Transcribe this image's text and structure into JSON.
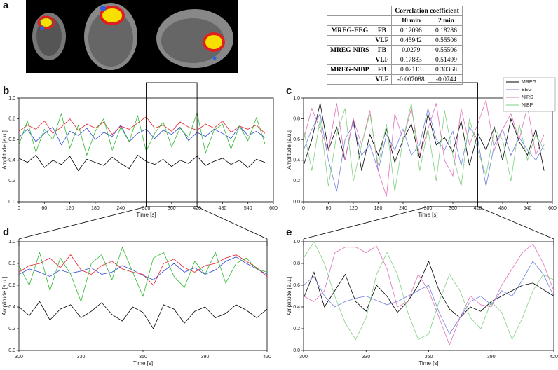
{
  "panel_a": "a",
  "table": {
    "header": "Correlation coefficient",
    "subheaders": [
      "10 min",
      "2 min"
    ],
    "groups": [
      {
        "group": "MREG-EEG",
        "rows": [
          [
            "FB",
            0.12096,
            0.18286
          ],
          [
            "VLF",
            0.45942,
            0.55506
          ]
        ]
      },
      {
        "group": "MREG-NIRS",
        "rows": [
          [
            "FB",
            0.0279,
            0.55506
          ],
          [
            "VLF",
            0.17883,
            0.51499
          ]
        ]
      },
      {
        "group": "MREG-NIBP",
        "rows": [
          [
            "FB",
            0.02113,
            0.30368
          ],
          [
            "VLF",
            -0.007088,
            -0.0744
          ]
        ]
      }
    ]
  },
  "chart_data": [
    {
      "type": "line",
      "panel": "b",
      "x_label": "Time [s]",
      "y_label": "Amplitude [a.u.]",
      "x": [
        0,
        20,
        40,
        60,
        80,
        100,
        120,
        140,
        160,
        180,
        200,
        220,
        240,
        260,
        280,
        300,
        320,
        340,
        360,
        380,
        400,
        420,
        440,
        460,
        480,
        500,
        520,
        540,
        560,
        580
      ],
      "xlim": [
        0,
        600
      ],
      "xticks": [
        0,
        60,
        120,
        180,
        240,
        300,
        360,
        420,
        480,
        540,
        600
      ],
      "ylim": [
        0,
        1
      ],
      "yticks": [
        {
          "value": 0,
          "label": "0.0"
        },
        {
          "value": 0.2,
          "label": "0.2"
        },
        {
          "value": 0.4,
          "label": "0.4"
        },
        {
          "value": 0.6,
          "label": "0.6"
        },
        {
          "value": 0.8,
          "label": "0.8"
        },
        {
          "value": 1,
          "label": "1.0"
        }
      ],
      "series": [
        {
          "color": "#000000",
          "values": [
            0.42,
            0.38,
            0.45,
            0.33,
            0.4,
            0.36,
            0.44,
            0.3,
            0.41,
            0.38,
            0.35,
            0.43,
            0.37,
            0.32,
            0.45,
            0.39,
            0.36,
            0.41,
            0.34,
            0.4,
            0.37,
            0.44,
            0.35,
            0.39,
            0.42,
            0.36,
            0.4,
            0.33,
            0.41,
            0.38
          ]
        },
        {
          "color": "#2f45d8",
          "values": [
            0.62,
            0.7,
            0.58,
            0.66,
            0.72,
            0.55,
            0.68,
            0.64,
            0.71,
            0.6,
            0.67,
            0.63,
            0.74,
            0.58,
            0.66,
            0.7,
            0.61,
            0.69,
            0.65,
            0.72,
            0.59,
            0.67,
            0.63,
            0.7,
            0.66,
            0.61,
            0.73,
            0.64,
            0.68,
            0.62
          ]
        },
        {
          "color": "#e8202a",
          "values": [
            0.68,
            0.74,
            0.7,
            0.78,
            0.66,
            0.72,
            0.8,
            0.69,
            0.75,
            0.71,
            0.77,
            0.65,
            0.73,
            0.7,
            0.76,
            0.82,
            0.71,
            0.74,
            0.68,
            0.77,
            0.72,
            0.69,
            0.75,
            0.71,
            0.78,
            0.67,
            0.73,
            0.7,
            0.74,
            0.66
          ]
        },
        {
          "color": "#2eb82e",
          "values": [
            0.55,
            0.78,
            0.48,
            0.7,
            0.6,
            0.85,
            0.52,
            0.74,
            0.45,
            0.68,
            0.8,
            0.5,
            0.72,
            0.58,
            0.83,
            0.49,
            0.66,
            0.77,
            0.53,
            0.71,
            0.62,
            0.86,
            0.47,
            0.69,
            0.75,
            0.51,
            0.73,
            0.59,
            0.81,
            0.56
          ]
        }
      ]
    },
    {
      "type": "line",
      "panel": "c",
      "x_label": "Time [s]",
      "y_label": "Amplitude [a.u.]",
      "legend": "top-right",
      "x": [
        0,
        20,
        40,
        60,
        80,
        100,
        120,
        140,
        160,
        180,
        200,
        220,
        240,
        260,
        280,
        300,
        320,
        340,
        360,
        380,
        400,
        420,
        440,
        460,
        480,
        500,
        520,
        540,
        560,
        580
      ],
      "xlim": [
        0,
        600
      ],
      "xticks": [
        0,
        60,
        120,
        180,
        240,
        300,
        360,
        420,
        480,
        540,
        600
      ],
      "ylim": [
        0,
        1
      ],
      "yticks": [
        {
          "value": 0,
          "label": "0.0"
        },
        {
          "value": 0.2,
          "label": "0.2"
        },
        {
          "value": 0.4,
          "label": "0.4"
        },
        {
          "value": 0.6,
          "label": "0.6"
        },
        {
          "value": 0.8,
          "label": "0.8"
        },
        {
          "value": 1,
          "label": "1.0"
        }
      ],
      "series": [
        {
          "name": "MREG",
          "color": "#000000",
          "values": [
            0.35,
            0.6,
            0.95,
            0.5,
            0.72,
            0.4,
            0.8,
            0.3,
            0.65,
            0.45,
            0.7,
            0.38,
            0.6,
            0.75,
            0.42,
            0.85,
            0.55,
            0.62,
            0.48,
            0.78,
            0.35,
            0.66,
            0.5,
            0.72,
            0.4,
            0.8,
            0.58,
            0.45,
            0.7,
            0.3
          ]
        },
        {
          "name": "EEG",
          "color": "#6f80e0",
          "values": [
            0.5,
            0.7,
            0.85,
            0.4,
            0.1,
            0.6,
            0.75,
            0.45,
            0.55,
            0.3,
            0.65,
            0.5,
            0.7,
            0.45,
            0.55,
            0.9,
            0.6,
            0.5,
            0.68,
            0.35,
            0.72,
            0.6,
            0.15,
            0.55,
            0.7,
            0.45,
            0.62,
            0.5,
            0.4,
            0.55
          ]
        },
        {
          "name": "NIRS",
          "color": "#e070b8",
          "values": [
            0.6,
            0.9,
            0.7,
            0.5,
            0.95,
            0.4,
            0.8,
            0.55,
            0.88,
            0.3,
            0.05,
            0.85,
            0.6,
            0.9,
            0.45,
            0.7,
            0.95,
            0.4,
            0.25,
            0.9,
            0.55,
            0.75,
            0.98,
            0.5,
            0.7,
            0.85,
            0.6,
            0.92,
            0.45,
            0.65
          ]
        },
        {
          "name": "NIBP",
          "color": "#80d080",
          "values": [
            0.7,
            0.3,
            0.8,
            0.15,
            0.65,
            0.9,
            0.2,
            0.55,
            0.85,
            0.35,
            0.75,
            0.1,
            0.6,
            0.95,
            0.3,
            0.7,
            0.2,
            0.88,
            0.45,
            0.15,
            0.8,
            0.5,
            0.25,
            0.7,
            0.6,
            0.2,
            0.75,
            0.4,
            0.65,
            0.5
          ]
        }
      ]
    },
    {
      "type": "line",
      "panel": "d",
      "x_label": "Time [s]",
      "y_label": "Amplitude [a.u.]",
      "x": [
        300,
        305,
        310,
        315,
        320,
        325,
        330,
        335,
        340,
        345,
        350,
        355,
        360,
        365,
        370,
        375,
        380,
        385,
        390,
        395,
        400,
        405,
        410,
        415,
        420
      ],
      "xlim": [
        300,
        420
      ],
      "xticks": [
        300,
        330,
        360,
        390,
        420
      ],
      "ylim": [
        0,
        1
      ],
      "yticks": [
        {
          "value": 0,
          "label": "0.0"
        },
        {
          "value": 0.2,
          "label": "0.2"
        },
        {
          "value": 0.4,
          "label": "0.4"
        },
        {
          "value": 0.6,
          "label": "0.6"
        },
        {
          "value": 0.8,
          "label": "0.8"
        },
        {
          "value": 1,
          "label": "1.0"
        }
      ],
      "series": [
        {
          "color": "#000000",
          "values": [
            0.4,
            0.32,
            0.45,
            0.28,
            0.38,
            0.42,
            0.3,
            0.36,
            0.44,
            0.33,
            0.27,
            0.4,
            0.35,
            0.2,
            0.42,
            0.38,
            0.25,
            0.36,
            0.4,
            0.3,
            0.34,
            0.42,
            0.37,
            0.3,
            0.38
          ]
        },
        {
          "color": "#2f45d8",
          "values": [
            0.7,
            0.75,
            0.72,
            0.68,
            0.74,
            0.71,
            0.73,
            0.76,
            0.7,
            0.72,
            0.78,
            0.74,
            0.69,
            0.65,
            0.73,
            0.8,
            0.72,
            0.76,
            0.7,
            0.74,
            0.82,
            0.86,
            0.8,
            0.75,
            0.7
          ]
        },
        {
          "color": "#e8202a",
          "values": [
            0.72,
            0.78,
            0.8,
            0.85,
            0.76,
            0.88,
            0.74,
            0.7,
            0.78,
            0.82,
            0.75,
            0.72,
            0.7,
            0.6,
            0.8,
            0.84,
            0.76,
            0.72,
            0.78,
            0.8,
            0.85,
            0.88,
            0.82,
            0.76,
            0.68
          ]
        },
        {
          "color": "#2eb82e",
          "values": [
            0.78,
            0.6,
            0.9,
            0.55,
            0.85,
            0.7,
            0.45,
            0.8,
            0.88,
            0.65,
            0.95,
            0.72,
            0.5,
            0.85,
            0.9,
            0.68,
            0.58,
            0.82,
            0.7,
            0.9,
            0.62,
            0.8,
            0.85,
            0.75,
            0.72
          ]
        }
      ]
    },
    {
      "type": "line",
      "panel": "e",
      "x_label": "Time [s]",
      "y_label": "Amplitude [a.u.]",
      "x": [
        300,
        305,
        310,
        315,
        320,
        325,
        330,
        335,
        340,
        345,
        350,
        355,
        360,
        365,
        370,
        375,
        380,
        385,
        390,
        395,
        400,
        405,
        410,
        415,
        420
      ],
      "xlim": [
        300,
        420
      ],
      "xticks": [
        300,
        330,
        360,
        390,
        420
      ],
      "ylim": [
        0,
        1
      ],
      "yticks": [
        {
          "value": 0,
          "label": "0.0"
        },
        {
          "value": 0.2,
          "label": "0.2"
        },
        {
          "value": 0.4,
          "label": "0.4"
        },
        {
          "value": 0.6,
          "label": "0.6"
        },
        {
          "value": 0.8,
          "label": "0.8"
        },
        {
          "value": 1,
          "label": "1.0"
        }
      ],
      "series": [
        {
          "color": "#000000",
          "values": [
            0.48,
            0.72,
            0.4,
            0.55,
            0.7,
            0.45,
            0.36,
            0.6,
            0.5,
            0.35,
            0.45,
            0.6,
            0.82,
            0.55,
            0.38,
            0.3,
            0.4,
            0.36,
            0.45,
            0.5,
            0.55,
            0.6,
            0.62,
            0.56,
            0.5
          ]
        },
        {
          "color": "#6f80e0",
          "values": [
            0.6,
            0.68,
            0.5,
            0.4,
            0.45,
            0.48,
            0.5,
            0.46,
            0.42,
            0.45,
            0.5,
            0.55,
            0.6,
            0.35,
            0.15,
            0.3,
            0.45,
            0.5,
            0.42,
            0.55,
            0.5,
            0.65,
            0.82,
            0.7,
            0.5
          ]
        },
        {
          "color": "#e070b8",
          "values": [
            0.5,
            0.45,
            0.55,
            0.9,
            0.95,
            0.95,
            0.9,
            0.96,
            0.75,
            0.4,
            0.45,
            0.7,
            0.55,
            0.3,
            0.05,
            0.3,
            0.5,
            0.42,
            0.4,
            0.6,
            0.75,
            0.9,
            0.98,
            0.8,
            0.55
          ]
        },
        {
          "color": "#80d080",
          "values": [
            0.85,
            1.0,
            0.8,
            0.5,
            0.25,
            0.1,
            0.3,
            0.7,
            0.9,
            0.7,
            0.35,
            0.1,
            0.15,
            0.45,
            0.7,
            0.55,
            0.3,
            0.2,
            0.45,
            0.35,
            0.1,
            0.3,
            0.55,
            0.7,
            0.65
          ]
        }
      ]
    }
  ]
}
